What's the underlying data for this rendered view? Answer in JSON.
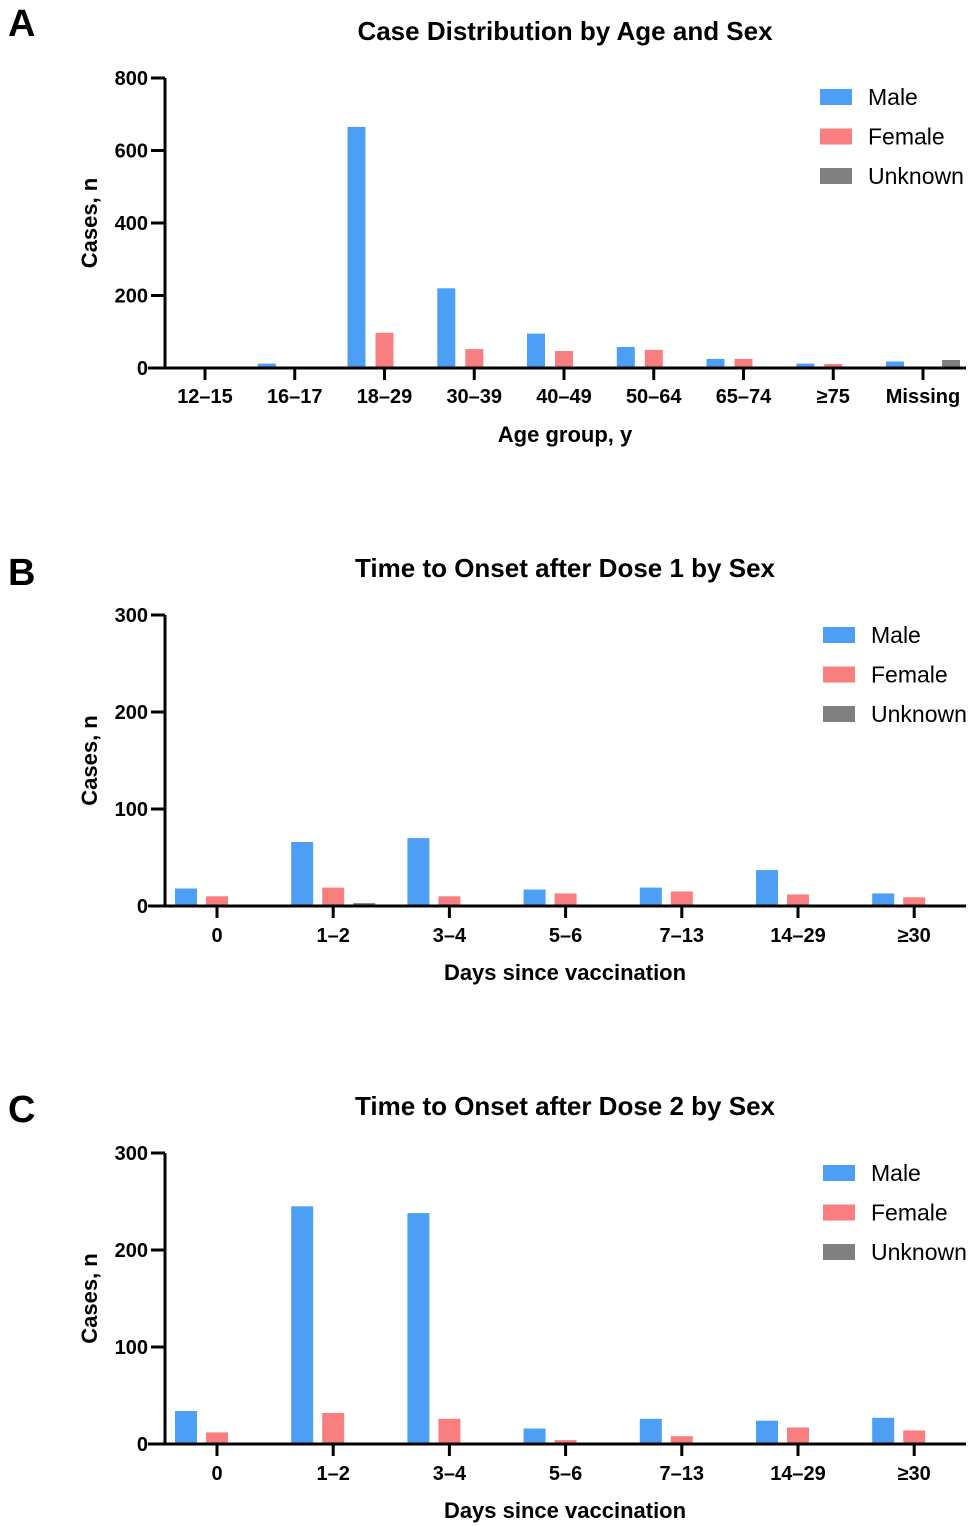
{
  "colors": {
    "Male": "#4d9ff5",
    "Female": "#f87e7f",
    "Unknown": "#808080"
  },
  "chart_data": [
    {
      "panel": "A",
      "type": "bar",
      "title": "Case Distribution by Age and Sex",
      "xlabel": "Age group, y",
      "ylabel": "Cases, n",
      "ylim": [
        0,
        800
      ],
      "yticks": [
        0,
        200,
        400,
        600,
        800
      ],
      "categories": [
        "12–15",
        "16–17",
        "18–29",
        "30–39",
        "40–49",
        "50–64",
        "65–74",
        "≥75",
        "Missing"
      ],
      "series": [
        {
          "name": "Male",
          "values": [
            2,
            12,
            665,
            220,
            95,
            58,
            25,
            12,
            18
          ]
        },
        {
          "name": "Female",
          "values": [
            1,
            2,
            97,
            52,
            47,
            50,
            25,
            11,
            3
          ]
        },
        {
          "name": "Unknown",
          "values": [
            0,
            0,
            0,
            0,
            0,
            0,
            0,
            0,
            22
          ]
        }
      ],
      "legend": "top-right"
    },
    {
      "panel": "B",
      "type": "bar",
      "title": "Time to Onset after Dose 1 by Sex",
      "xlabel": "Days since vaccination",
      "ylabel": "Cases, n",
      "ylim": [
        0,
        300
      ],
      "yticks": [
        0,
        100,
        200,
        300
      ],
      "categories": [
        "0",
        "1–2",
        "3–4",
        "5–6",
        "7–13",
        "14–29",
        "≥30"
      ],
      "series": [
        {
          "name": "Male",
          "values": [
            18,
            66,
            70,
            17,
            19,
            37,
            13
          ]
        },
        {
          "name": "Female",
          "values": [
            10,
            19,
            10,
            13,
            15,
            12,
            9
          ]
        },
        {
          "name": "Unknown",
          "values": [
            0,
            3,
            0,
            0,
            0,
            0,
            0
          ]
        }
      ],
      "legend": "top-right"
    },
    {
      "panel": "C",
      "type": "bar",
      "title": "Time to Onset after Dose 2 by Sex",
      "xlabel": "Days since vaccination",
      "ylabel": "Cases, n",
      "ylim": [
        0,
        300
      ],
      "yticks": [
        0,
        100,
        200,
        300
      ],
      "categories": [
        "0",
        "1–2",
        "3–4",
        "5–6",
        "7–13",
        "14–29",
        "≥30"
      ],
      "series": [
        {
          "name": "Male",
          "values": [
            34,
            245,
            238,
            16,
            26,
            24,
            27
          ]
        },
        {
          "name": "Female",
          "values": [
            12,
            32,
            26,
            4,
            8,
            17,
            14
          ]
        },
        {
          "name": "Unknown",
          "values": [
            0,
            0,
            0,
            0,
            0,
            0,
            0
          ]
        }
      ],
      "legend": "top-right"
    }
  ]
}
